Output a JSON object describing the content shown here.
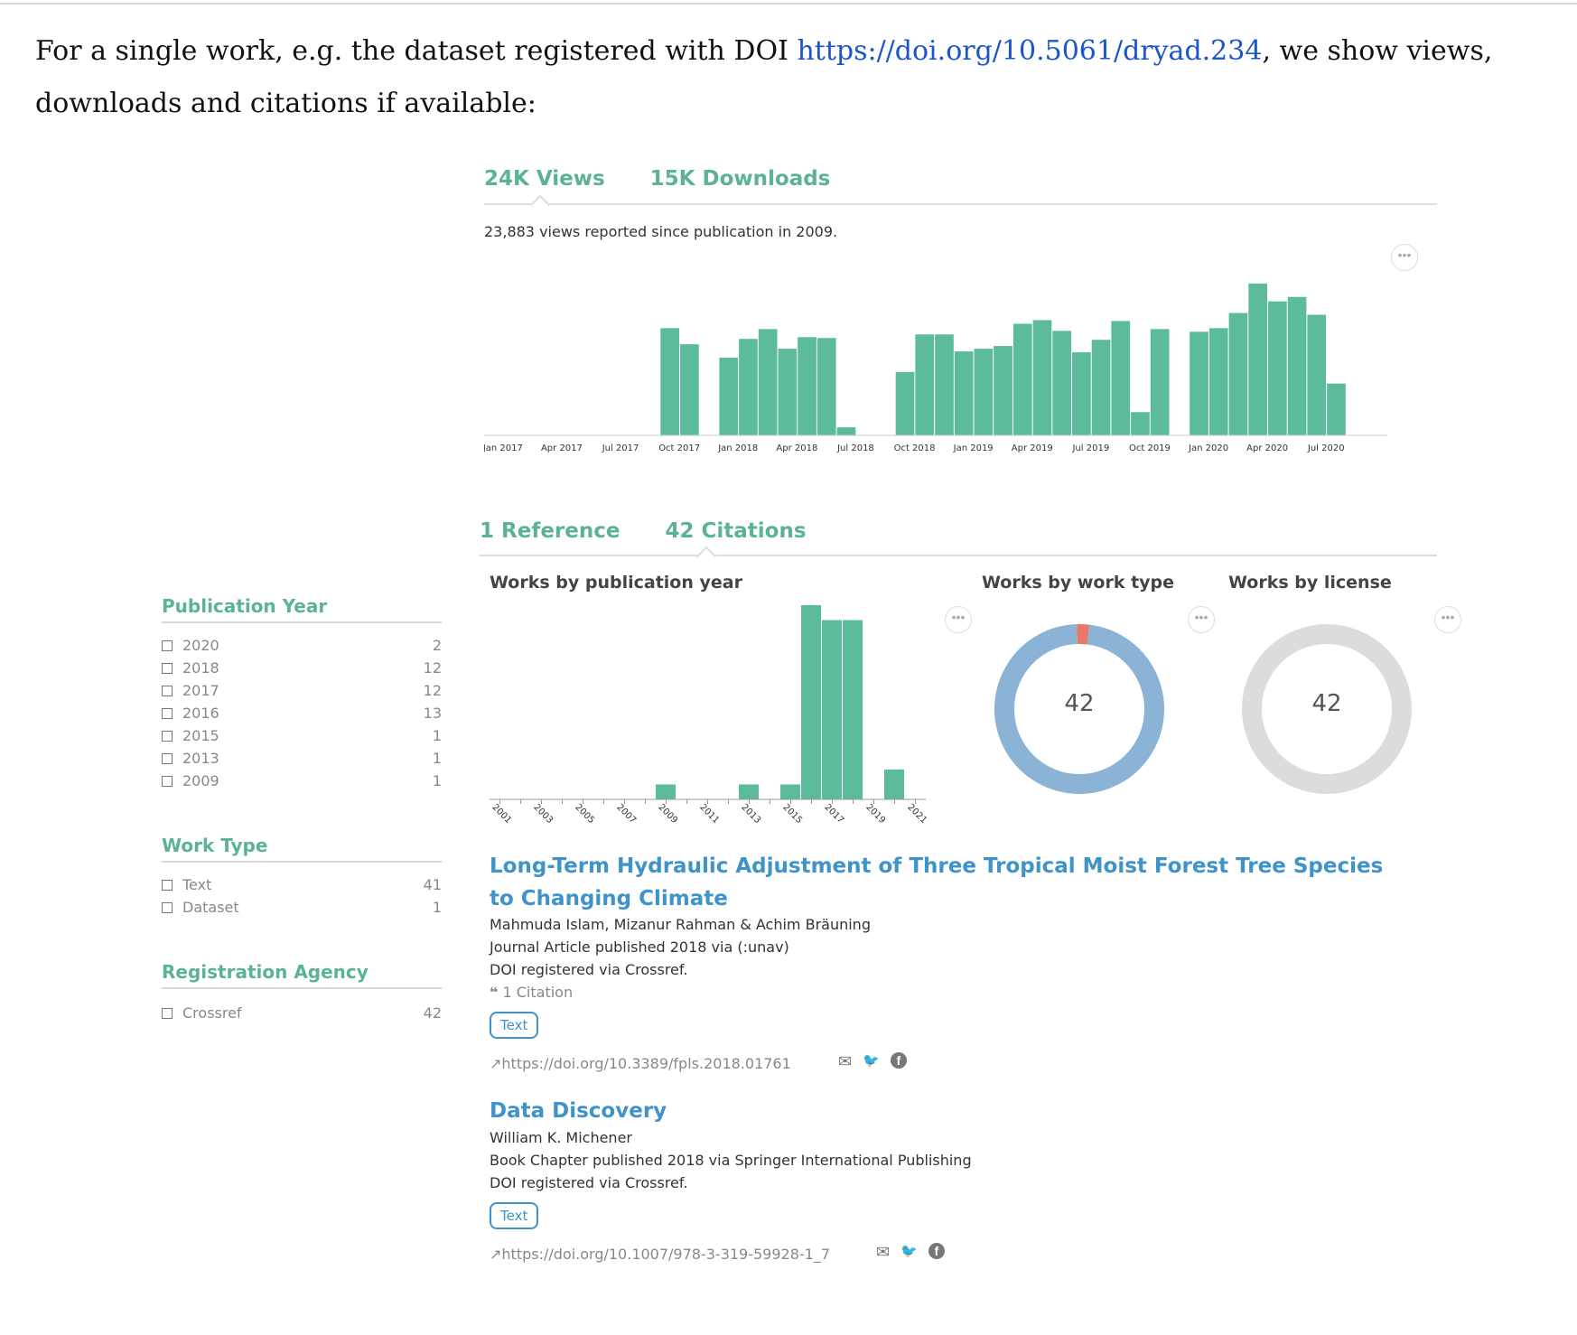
{
  "intro": {
    "before": "For a single work, e.g. the dataset registered with DOI ",
    "link": "https://doi.org/10.5061/dryad.234",
    "after": ", we show views, downloads and citations if available:"
  },
  "usage": {
    "tab_views": "24K Views",
    "tab_downloads": "15K Downloads",
    "caption": "23,883 views reported since publication in 2009.",
    "menu": "•••"
  },
  "refs": {
    "tab_reference": "1 Reference",
    "tab_citations": "42 Citations"
  },
  "facets": {
    "publication_year": {
      "title": "Publication Year",
      "items": [
        {
          "label": "2020",
          "count": "2"
        },
        {
          "label": "2018",
          "count": "12"
        },
        {
          "label": "2017",
          "count": "12"
        },
        {
          "label": "2016",
          "count": "13"
        },
        {
          "label": "2015",
          "count": "1"
        },
        {
          "label": "2013",
          "count": "1"
        },
        {
          "label": "2009",
          "count": "1"
        }
      ]
    },
    "work_type": {
      "title": "Work Type",
      "items": [
        {
          "label": "Text",
          "count": "41"
        },
        {
          "label": "Dataset",
          "count": "1"
        }
      ]
    },
    "registration_agency": {
      "title": "Registration Agency",
      "items": [
        {
          "label": "Crossref",
          "count": "42"
        }
      ]
    }
  },
  "charts": {
    "by_year_title": "Works by publication year",
    "by_type_title": "Works by work type",
    "by_license_title": "Works by license",
    "type_total": "42",
    "license_total": "42"
  },
  "chart_data": [
    {
      "type": "bar",
      "title": "",
      "xlabel": "",
      "ylabel": "",
      "x_tick_labels": [
        "Jan 2017",
        "Apr 2017",
        "Jul 2017",
        "Oct 2017",
        "Jan 2018",
        "Apr 2018",
        "Jul 2018",
        "Oct 2018",
        "Jan 2019",
        "Apr 2019",
        "Jul 2019",
        "Oct 2019",
        "Jan 2020",
        "Apr 2020",
        "Jul 2020"
      ],
      "categories": [
        "Jan 2017",
        "Feb 2017",
        "Mar 2017",
        "Apr 2017",
        "May 2017",
        "Jun 2017",
        "Jul 2017",
        "Aug 2017",
        "Sep 2017",
        "Oct 2017",
        "Nov 2017",
        "Dec 2017",
        "Jan 2018",
        "Feb 2018",
        "Mar 2018",
        "Apr 2018",
        "May 2018",
        "Jun 2018",
        "Jul 2018",
        "Aug 2018",
        "Sep 2018",
        "Oct 2018",
        "Nov 2018",
        "Dec 2018",
        "Jan 2019",
        "Feb 2019",
        "Mar 2019",
        "Apr 2019",
        "May 2019",
        "Jun 2019",
        "Jul 2019",
        "Aug 2019",
        "Sep 2019",
        "Oct 2019",
        "Nov 2019",
        "Dec 2019",
        "Jan 2020",
        "Feb 2020",
        "Mar 2020",
        "Apr 2020",
        "May 2020",
        "Jun 2020",
        "Jul 2020",
        "Aug 2020"
      ],
      "values": [
        0,
        0,
        0,
        0,
        0,
        0,
        0,
        0,
        0,
        120,
        102,
        0,
        87,
        108,
        119,
        97,
        110,
        109,
        9,
        0,
        0,
        71,
        113,
        113,
        94,
        97,
        100,
        125,
        129,
        117,
        93,
        107,
        128,
        26,
        119,
        0,
        116,
        120,
        137,
        170,
        150,
        155,
        135,
        58
      ],
      "ylim": [
        0,
        180
      ],
      "grid": false,
      "color": "#5bbb9a"
    },
    {
      "type": "bar",
      "title": "Works by publication year",
      "xlabel": "",
      "ylabel": "",
      "categories": [
        "2001",
        "2002",
        "2003",
        "2004",
        "2005",
        "2006",
        "2007",
        "2008",
        "2009",
        "2010",
        "2011",
        "2012",
        "2013",
        "2014",
        "2015",
        "2016",
        "2017",
        "2018",
        "2019",
        "2020",
        "2021"
      ],
      "x_tick_labels": [
        "2001",
        "2003",
        "2005",
        "2007",
        "2009",
        "2011",
        "2013",
        "2015",
        "2017",
        "2019",
        "2021"
      ],
      "values": [
        0,
        0,
        0,
        0,
        0,
        0,
        0,
        0,
        1,
        0,
        0,
        0,
        1,
        0,
        1,
        13,
        12,
        12,
        0,
        2,
        0
      ],
      "ylim": [
        0,
        13
      ],
      "grid": false,
      "color": "#5bbb9a"
    },
    {
      "type": "pie",
      "title": "Works by work type",
      "categories": [
        "Text",
        "Dataset"
      ],
      "values": [
        41,
        1
      ],
      "colors": [
        "#8ab3d6",
        "#e8796b"
      ],
      "center_label": "42"
    },
    {
      "type": "pie",
      "title": "Works by license",
      "categories": [
        ""
      ],
      "values": [
        42
      ],
      "colors": [
        "#dcdcdc"
      ],
      "center_label": "42"
    }
  ],
  "works": [
    {
      "title": "Long-Term Hydraulic Adjustment of Three Tropical Moist Forest Tree Species to Changing Climate",
      "authors": "Mahmuda Islam, Mizanur Rahman & Achim Bräuning",
      "published": "Journal Article published 2018 via (:unav)",
      "registered": "DOI registered via Crossref.",
      "citations": "1 Citation",
      "tag": "Text",
      "url": "https://doi.org/10.3389/fpls.2018.01761"
    },
    {
      "title": "Data Discovery",
      "authors": "William K. Michener",
      "published": "Book Chapter published 2018 via Springer International Publishing",
      "registered": "DOI registered via Crossref.",
      "tag": "Text",
      "url": "https://doi.org/10.1007/978-3-319-59928-1_7"
    }
  ],
  "icons": {
    "external_link": "↗",
    "email": "✉",
    "twitter": "🐦",
    "facebook": "f",
    "quote": "❝"
  }
}
